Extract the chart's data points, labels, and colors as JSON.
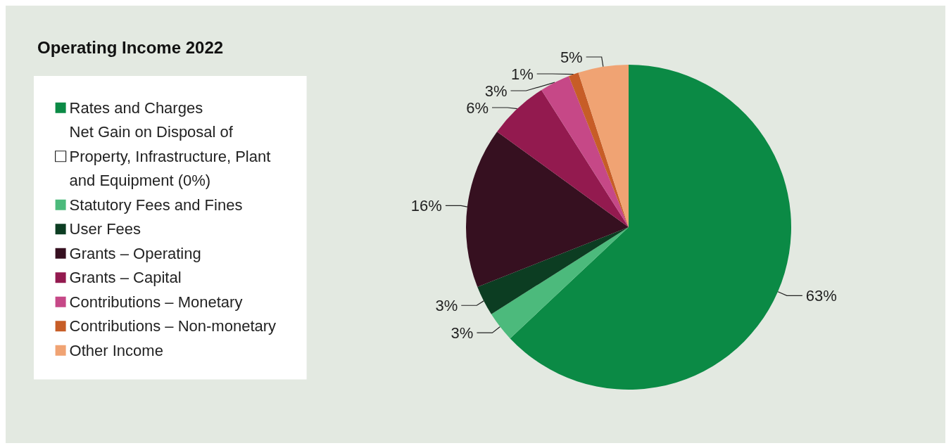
{
  "chart_data": {
    "type": "pie",
    "title": "Operating Income 2022",
    "categories": [
      "Rates and Charges",
      "Net Gain on Disposal of Property, Infrastructure, Plant and Equipment (0%)",
      "Statutory Fees and Fines",
      "User Fees",
      "Grants – Operating",
      "Grants – Capital",
      "Contributions – Monetary",
      "Contributions – Non-monetary",
      "Other Income"
    ],
    "values": [
      63,
      0,
      3,
      3,
      16,
      6,
      3,
      1,
      5
    ],
    "value_labels": [
      "63%",
      null,
      "3%",
      "3%",
      "16%",
      "6%",
      "3%",
      "1%",
      "5%"
    ],
    "colors": [
      "#0b8a45",
      "#ffffff",
      "#4cba7c",
      "#0c3d22",
      "#361020",
      "#931a4f",
      "#c64887",
      "#c75d27",
      "#f0a373"
    ],
    "legend": "left"
  }
}
